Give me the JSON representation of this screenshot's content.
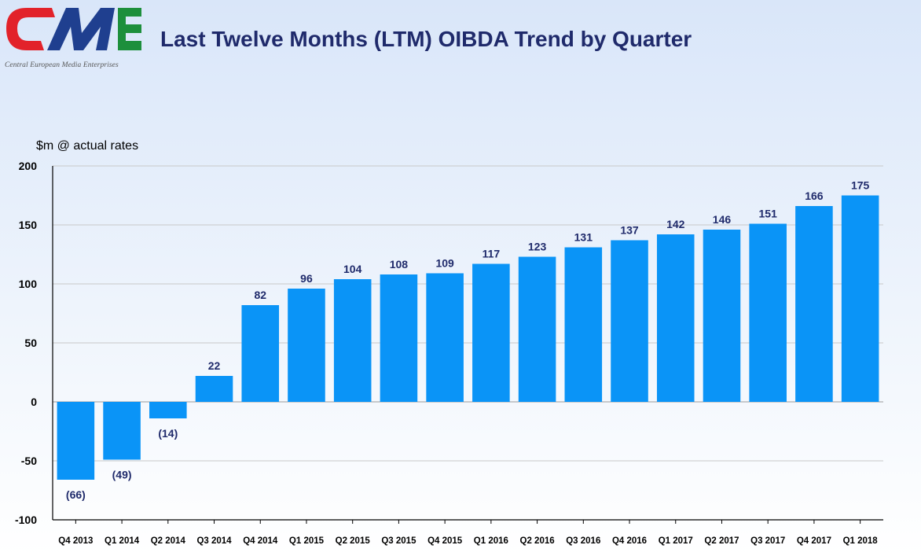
{
  "header": {
    "title": "Last Twelve Months (LTM) OIBDA Trend by Quarter"
  },
  "logo": {
    "caption": "Central European Media Enterprises",
    "colors": {
      "red": "#e2222a",
      "blue": "#1f3f8f",
      "green": "#1d8f3c"
    }
  },
  "chart_data": {
    "type": "bar",
    "title": "",
    "unit_label": "$m @ actual rates",
    "xlabel": "",
    "ylabel": "",
    "ylim": [
      -100,
      200
    ],
    "yticks": [
      -100,
      -50,
      0,
      50,
      100,
      150,
      200
    ],
    "yticks_labels": [
      "-100",
      "-50",
      "0",
      "50",
      "100",
      "150",
      "200"
    ],
    "grid": true,
    "bar_color": "#0a94f7",
    "categories": [
      "Q4 2013",
      "Q1 2014",
      "Q2 2014",
      "Q3 2014",
      "Q4 2014",
      "Q1 2015",
      "Q2 2015",
      "Q3 2015",
      "Q4 2015",
      "Q1 2016",
      "Q2 2016",
      "Q3 2016",
      "Q4 2016",
      "Q1 2017",
      "Q2 2017",
      "Q3 2017",
      "Q4 2017",
      "Q1 2018"
    ],
    "values": [
      -66,
      -49,
      -14,
      22,
      82,
      96,
      104,
      108,
      109,
      117,
      123,
      131,
      137,
      142,
      146,
      151,
      166,
      175
    ],
    "data_labels": [
      "(66)",
      "(49)",
      "(14)",
      "22",
      "82",
      "96",
      "104",
      "108",
      "109",
      "117",
      "123",
      "131",
      "137",
      "142",
      "146",
      "151",
      "166",
      "175"
    ]
  }
}
